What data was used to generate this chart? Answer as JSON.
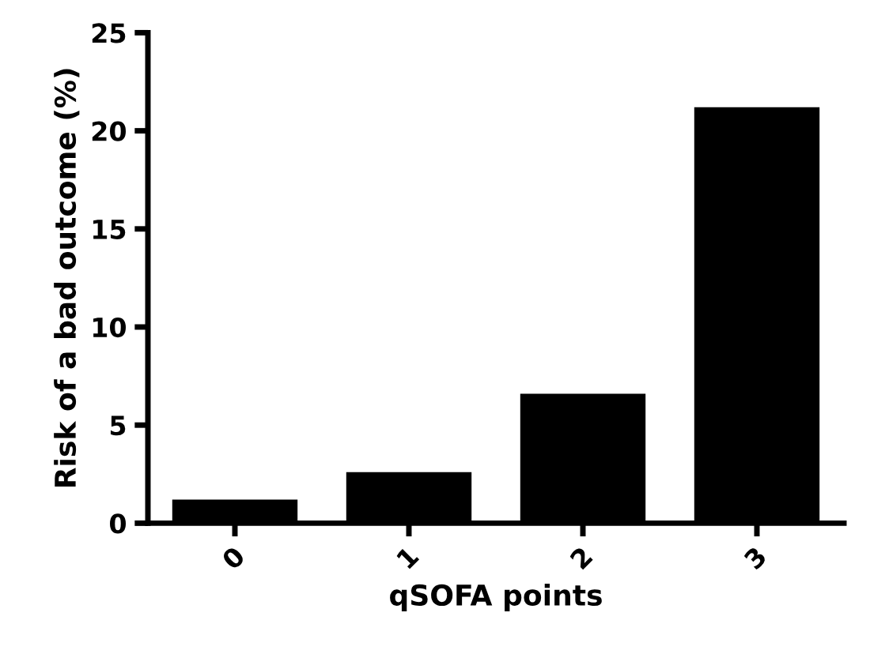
{
  "chart_data": {
    "type": "bar",
    "xlabel": "qSOFA points",
    "ylabel": "Risk of a bad outcome (%)",
    "categories": [
      "0",
      "1",
      "2",
      "3"
    ],
    "values": [
      1.2,
      2.6,
      6.6,
      21.2
    ],
    "color": "#000000",
    "ylim": [
      0,
      25
    ],
    "yticks": [
      0,
      5,
      10,
      15,
      20,
      25
    ],
    "grid": false
  }
}
